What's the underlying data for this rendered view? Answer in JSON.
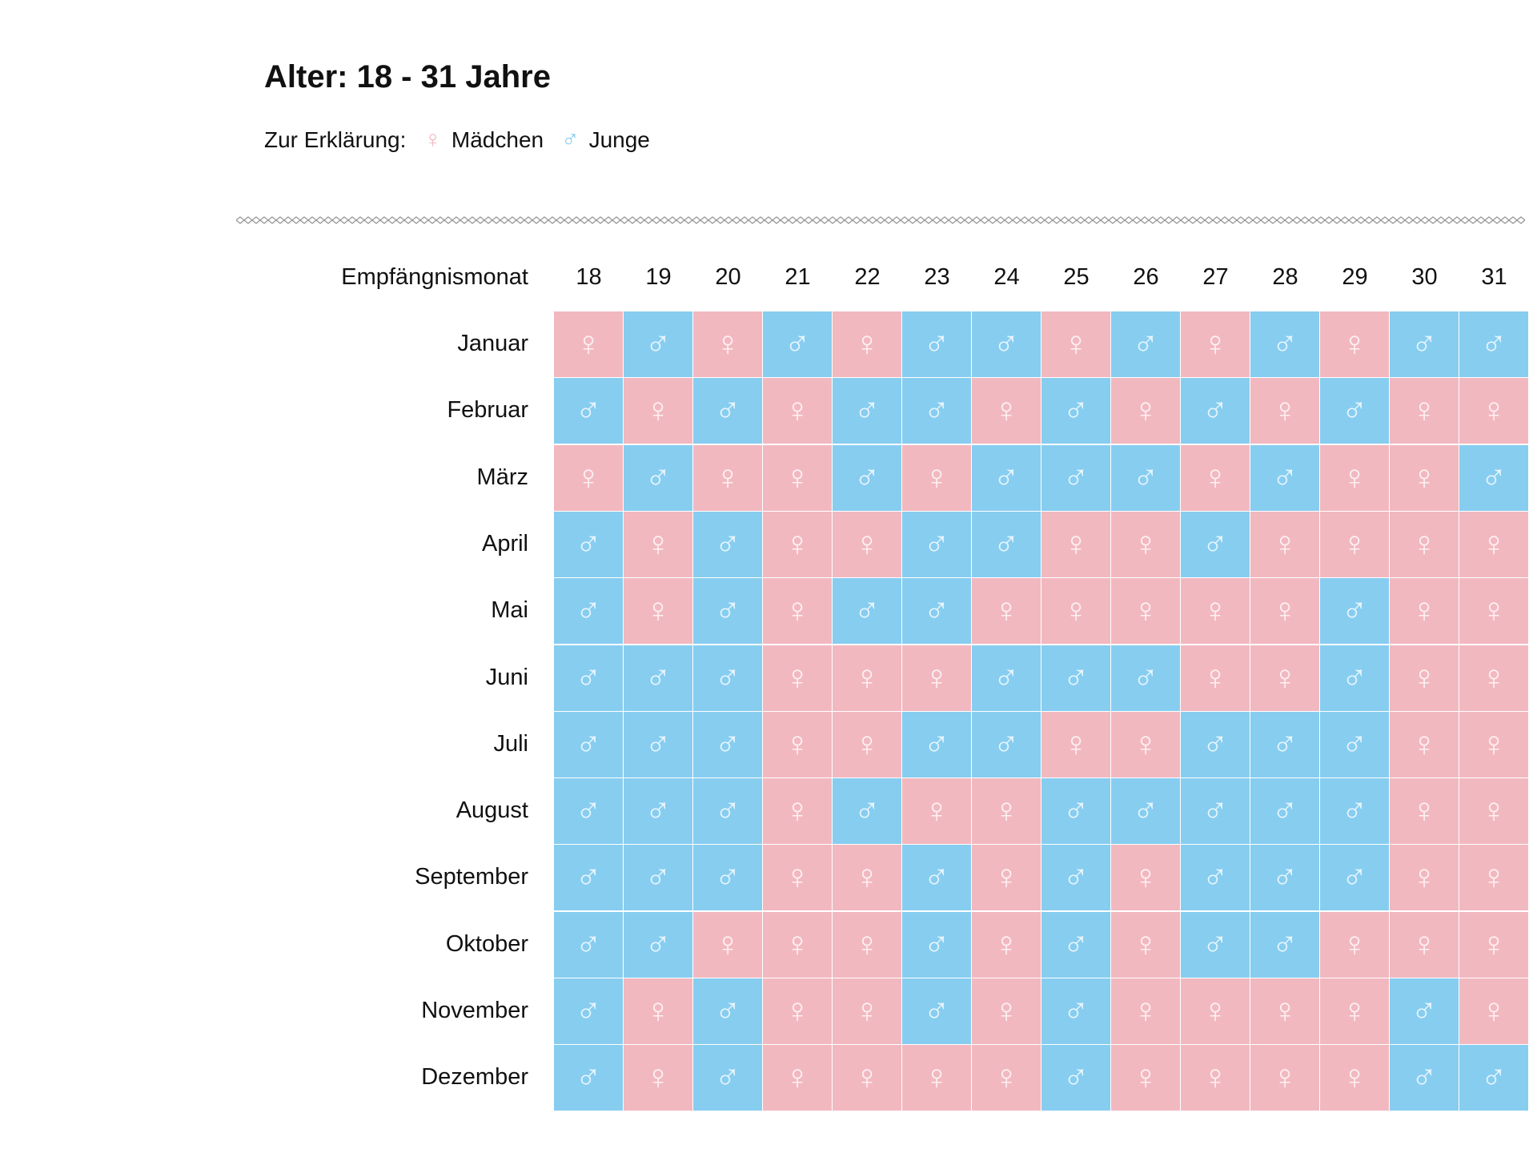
{
  "title": "Alter: 18 - 31 Jahre",
  "legend": {
    "label": "Zur Erklärung:",
    "items": [
      {
        "symbol": "♀",
        "label": "Mädchen",
        "color": "#f2b8c0"
      },
      {
        "symbol": "♂",
        "label": "Junge",
        "color": "#87cdf0"
      }
    ]
  },
  "table": {
    "corner": "Empfängnismonat",
    "columns": [
      "18",
      "19",
      "20",
      "21",
      "22",
      "23",
      "24",
      "25",
      "26",
      "27",
      "28",
      "29",
      "30",
      "31"
    ],
    "rows": [
      {
        "label": "Januar",
        "cells": [
          "♀",
          "♂",
          "♀",
          "♂",
          "♀",
          "♂",
          "♂",
          "♀",
          "♂",
          "♀",
          "♂",
          "♀",
          "♂",
          "♂"
        ]
      },
      {
        "label": "Februar",
        "cells": [
          "♂",
          "♀",
          "♂",
          "♀",
          "♂",
          "♂",
          "♀",
          "♂",
          "♀",
          "♂",
          "♀",
          "♂",
          "♀",
          "♀"
        ]
      },
      {
        "label": "März",
        "cells": [
          "♀",
          "♂",
          "♀",
          "♀",
          "♂",
          "♀",
          "♂",
          "♂",
          "♂",
          "♀",
          "♂",
          "♀",
          "♀",
          "♂"
        ]
      },
      {
        "label": "April",
        "cells": [
          "♂",
          "♀",
          "♂",
          "♀",
          "♀",
          "♂",
          "♂",
          "♀",
          "♀",
          "♂",
          "♀",
          "♀",
          "♀",
          "♀"
        ]
      },
      {
        "label": "Mai",
        "cells": [
          "♂",
          "♀",
          "♂",
          "♀",
          "♂",
          "♂",
          "♀",
          "♀",
          "♀",
          "♀",
          "♀",
          "♂",
          "♀",
          "♀"
        ]
      },
      {
        "label": "Juni",
        "cells": [
          "♂",
          "♂",
          "♂",
          "♀",
          "♀",
          "♀",
          "♂",
          "♂",
          "♂",
          "♀",
          "♀",
          "♂",
          "♀",
          "♀"
        ]
      },
      {
        "label": "Juli",
        "cells": [
          "♂",
          "♂",
          "♂",
          "♀",
          "♀",
          "♂",
          "♂",
          "♀",
          "♀",
          "♂",
          "♂",
          "♂",
          "♀",
          "♀"
        ]
      },
      {
        "label": "August",
        "cells": [
          "♂",
          "♂",
          "♂",
          "♀",
          "♂",
          "♀",
          "♀",
          "♂",
          "♂",
          "♂",
          "♂",
          "♂",
          "♀",
          "♀"
        ]
      },
      {
        "label": "September",
        "cells": [
          "♂",
          "♂",
          "♂",
          "♀",
          "♀",
          "♂",
          "♀",
          "♂",
          "♀",
          "♂",
          "♂",
          "♂",
          "♀",
          "♀"
        ]
      },
      {
        "label": "Oktober",
        "cells": [
          "♂",
          "♂",
          "♀",
          "♀",
          "♀",
          "♂",
          "♀",
          "♂",
          "♀",
          "♂",
          "♂",
          "♀",
          "♀",
          "♀"
        ]
      },
      {
        "label": "November",
        "cells": [
          "♂",
          "♀",
          "♂",
          "♀",
          "♀",
          "♂",
          "♀",
          "♂",
          "♀",
          "♀",
          "♀",
          "♀",
          "♂",
          "♀"
        ]
      },
      {
        "label": "Dezember",
        "cells": [
          "♂",
          "♀",
          "♂",
          "♀",
          "♀",
          "♀",
          "♀",
          "♂",
          "♀",
          "♀",
          "♀",
          "♀",
          "♂",
          "♂"
        ]
      }
    ]
  }
}
